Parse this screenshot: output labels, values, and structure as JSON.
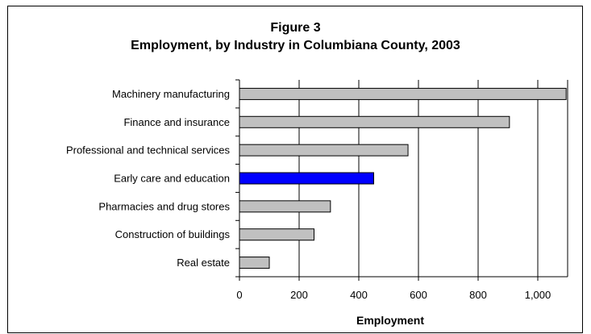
{
  "chart_data": {
    "type": "bar",
    "orientation": "horizontal",
    "title": "Figure 3",
    "subtitle": "Employment, by Industry in Columbiana County, 2003",
    "xlabel": "Employment",
    "ylabel": "",
    "xlim": [
      0,
      1100
    ],
    "xticks": [
      0,
      200,
      400,
      600,
      800,
      1000
    ],
    "xtick_labels": [
      "0",
      "200",
      "400",
      "600",
      "800",
      "1,000"
    ],
    "grid": "vertical",
    "legend": "none",
    "categories": [
      "Machinery manufacturing",
      "Finance and insurance",
      "Professional and technical services",
      "Early care and education",
      "Pharmacies and drug stores",
      "Construction of buildings",
      "Real estate"
    ],
    "values": [
      1095,
      905,
      565,
      450,
      305,
      250,
      100
    ],
    "colors": {
      "default_bar": "#c0c0c0",
      "highlight_bar": "#0000ff",
      "bar_stroke": "#000000",
      "gridline": "#000000"
    },
    "highlight_category": "Early care and education"
  }
}
